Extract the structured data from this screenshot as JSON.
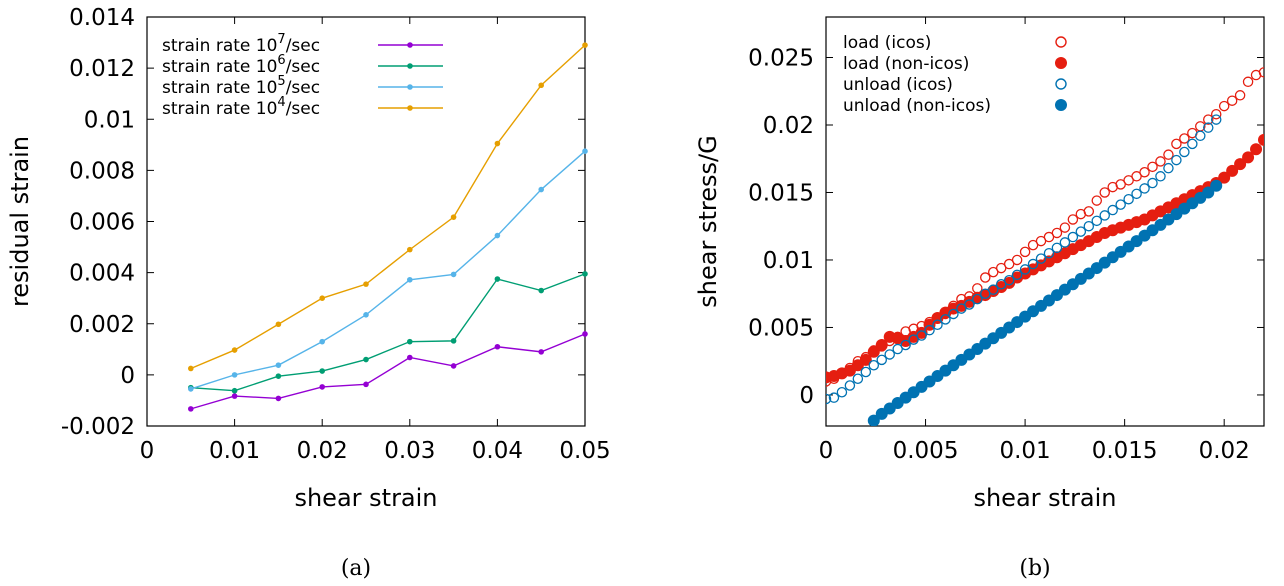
{
  "chart_data": [
    {
      "type": "line",
      "panel_caption": "(a)",
      "xlabel": "shear strain",
      "ylabel": "residual strain",
      "xlim": [
        0,
        0.05
      ],
      "ylim": [
        -0.002,
        0.014
      ],
      "xticks": [
        "0",
        "0.01",
        "0.02",
        "0.03",
        "0.04",
        "0.05"
      ],
      "yticks": [
        "-0.002",
        "0",
        "0.002",
        "0.004",
        "0.006",
        "0.008",
        "0.01",
        "0.012",
        "0.014"
      ],
      "legend_position": "top-left",
      "grid": false,
      "x": [
        0.005,
        0.01,
        0.015,
        0.02,
        0.025,
        0.03,
        0.035,
        0.04,
        0.045,
        0.05
      ],
      "series": [
        {
          "name_prefix": "strain rate 10",
          "name_exp": "7",
          "name_suffix": "/sec",
          "color": "#9400d3",
          "values": [
            -0.00133,
            -0.00083,
            -0.00092,
            -0.00047,
            -0.00037,
            0.00068,
            0.00035,
            0.0011,
            0.0009,
            0.0016
          ]
        },
        {
          "name_prefix": "strain rate 10",
          "name_exp": "6",
          "name_suffix": "/sec",
          "color": "#009e73",
          "values": [
            -0.0005,
            -0.00062,
            -5e-05,
            0.00015,
            0.0006,
            0.0013,
            0.00133,
            0.00375,
            0.0033,
            0.00395
          ]
        },
        {
          "name_prefix": "strain rate 10",
          "name_exp": "5",
          "name_suffix": "/sec",
          "color": "#56b4e9",
          "values": [
            -0.00055,
            0.0,
            0.00038,
            0.0013,
            0.00235,
            0.00372,
            0.00393,
            0.00545,
            0.00725,
            0.00875
          ]
        },
        {
          "name_prefix": "strain rate 10",
          "name_exp": "4",
          "name_suffix": "/sec",
          "color": "#e69f00",
          "values": [
            0.00025,
            0.00097,
            0.00198,
            0.003,
            0.00355,
            0.0049,
            0.00617,
            0.00905,
            0.01133,
            0.0129
          ]
        }
      ]
    },
    {
      "type": "scatter",
      "panel_caption": "(b)",
      "xlabel": "shear strain",
      "ylabel": "shear stress/G",
      "xlim": [
        0,
        0.022
      ],
      "ylim": [
        -0.0023,
        0.028
      ],
      "xticks": [
        "0",
        "0.005",
        "0.01",
        "0.015",
        "0.02"
      ],
      "yticks": [
        "0",
        "0.005",
        "0.01",
        "0.015",
        "0.02",
        "0.025"
      ],
      "legend_position": "top-left",
      "grid": false,
      "series": [
        {
          "name": "load (icos)",
          "color": "#e51e10",
          "marker": "open-circle",
          "x": [
            0.0,
            0.0004,
            0.0008,
            0.0012,
            0.0016,
            0.002,
            0.0024,
            0.0028,
            0.0032,
            0.0036,
            0.004,
            0.0044,
            0.0048,
            0.0052,
            0.0056,
            0.006,
            0.0064,
            0.0068,
            0.0072,
            0.0076,
            0.008,
            0.0084,
            0.0088,
            0.0092,
            0.0096,
            0.01,
            0.0104,
            0.0108,
            0.0112,
            0.0116,
            0.012,
            0.0124,
            0.0128,
            0.0132,
            0.0136,
            0.014,
            0.0144,
            0.0148,
            0.0152,
            0.0156,
            0.016,
            0.0164,
            0.0168,
            0.0172,
            0.0176,
            0.018,
            0.0184,
            0.0188,
            0.0192,
            0.0196,
            0.02,
            0.0204,
            0.0208,
            0.0212,
            0.0216,
            0.022
          ],
          "y": [
            0.001,
            0.0012,
            0.0016,
            0.002,
            0.0025,
            0.0028,
            0.0033,
            0.0036,
            0.004,
            0.0043,
            0.0047,
            0.0049,
            0.0051,
            0.0054,
            0.0057,
            0.006,
            0.0066,
            0.0071,
            0.0073,
            0.0079,
            0.0087,
            0.0091,
            0.0094,
            0.0097,
            0.01,
            0.0106,
            0.0111,
            0.0114,
            0.0117,
            0.012,
            0.0124,
            0.013,
            0.0134,
            0.0136,
            0.0144,
            0.015,
            0.0154,
            0.0156,
            0.0159,
            0.0162,
            0.0165,
            0.0169,
            0.0173,
            0.0178,
            0.0186,
            0.019,
            0.0194,
            0.0199,
            0.0204,
            0.0208,
            0.0214,
            0.0218,
            0.0222,
            0.0232,
            0.0237,
            0.0239
          ]
        },
        {
          "name": "load (non-icos)",
          "color": "#e51e10",
          "marker": "filled-circle",
          "x": [
            0.0,
            0.0004,
            0.0008,
            0.0012,
            0.0016,
            0.002,
            0.0024,
            0.0028,
            0.0032,
            0.0036,
            0.004,
            0.0044,
            0.0048,
            0.0052,
            0.0056,
            0.006,
            0.0064,
            0.0068,
            0.0072,
            0.0076,
            0.008,
            0.0084,
            0.0088,
            0.0092,
            0.0096,
            0.01,
            0.0104,
            0.0108,
            0.0112,
            0.0116,
            0.012,
            0.0124,
            0.0128,
            0.0132,
            0.0136,
            0.014,
            0.0144,
            0.0148,
            0.0152,
            0.0156,
            0.016,
            0.0164,
            0.0168,
            0.0172,
            0.0176,
            0.018,
            0.0184,
            0.0188,
            0.0192,
            0.0196,
            0.02,
            0.0204,
            0.0208,
            0.0212,
            0.0216,
            0.022
          ],
          "y": [
            0.0013,
            0.0014,
            0.0016,
            0.0018,
            0.0022,
            0.0026,
            0.0032,
            0.0037,
            0.0043,
            0.0042,
            0.004,
            0.0043,
            0.0046,
            0.0052,
            0.0057,
            0.0061,
            0.0064,
            0.0066,
            0.0069,
            0.0072,
            0.0074,
            0.0077,
            0.008,
            0.0083,
            0.0087,
            0.009,
            0.0093,
            0.0096,
            0.0099,
            0.0102,
            0.0105,
            0.0108,
            0.0111,
            0.0114,
            0.0117,
            0.012,
            0.0122,
            0.0124,
            0.0126,
            0.0128,
            0.013,
            0.0133,
            0.0136,
            0.0139,
            0.0142,
            0.0145,
            0.0148,
            0.0151,
            0.0154,
            0.0157,
            0.0161,
            0.0166,
            0.0171,
            0.0176,
            0.0182,
            0.0189
          ]
        },
        {
          "name": "unload (icos)",
          "color": "#0072b2",
          "marker": "open-circle",
          "x": [
            0.0,
            0.0004,
            0.0008,
            0.0012,
            0.0016,
            0.002,
            0.0024,
            0.0028,
            0.0032,
            0.0036,
            0.004,
            0.0044,
            0.0048,
            0.0052,
            0.0056,
            0.006,
            0.0064,
            0.0068,
            0.0072,
            0.0076,
            0.008,
            0.0084,
            0.0088,
            0.0092,
            0.0096,
            0.01,
            0.0104,
            0.0108,
            0.0112,
            0.0116,
            0.012,
            0.0124,
            0.0128,
            0.0132,
            0.0136,
            0.014,
            0.0144,
            0.0148,
            0.0152,
            0.0156,
            0.016,
            0.0164,
            0.0168,
            0.0172,
            0.0176,
            0.018,
            0.0184,
            0.0188,
            0.0192,
            0.0196
          ],
          "y": [
            -0.0003,
            -0.0002,
            0.0002,
            0.0007,
            0.0012,
            0.0017,
            0.0022,
            0.0026,
            0.003,
            0.0034,
            0.0037,
            0.0041,
            0.0044,
            0.0048,
            0.0052,
            0.0056,
            0.006,
            0.0064,
            0.0067,
            0.0071,
            0.0075,
            0.0078,
            0.0082,
            0.0085,
            0.0089,
            0.0093,
            0.0097,
            0.0101,
            0.0105,
            0.0109,
            0.0113,
            0.0117,
            0.0121,
            0.0125,
            0.0129,
            0.0133,
            0.0137,
            0.0141,
            0.0145,
            0.0149,
            0.0153,
            0.0157,
            0.0162,
            0.0168,
            0.0174,
            0.018,
            0.0186,
            0.0192,
            0.0198,
            0.0204
          ]
        },
        {
          "name": "unload (non-icos)",
          "color": "#0072b2",
          "marker": "filled-circle",
          "x": [
            0.0024,
            0.0028,
            0.0032,
            0.0036,
            0.004,
            0.0044,
            0.0048,
            0.0052,
            0.0056,
            0.006,
            0.0064,
            0.0068,
            0.0072,
            0.0076,
            0.008,
            0.0084,
            0.0088,
            0.0092,
            0.0096,
            0.01,
            0.0104,
            0.0108,
            0.0112,
            0.0116,
            0.012,
            0.0124,
            0.0128,
            0.0132,
            0.0136,
            0.014,
            0.0144,
            0.0148,
            0.0152,
            0.0156,
            0.016,
            0.0164,
            0.0168,
            0.0172,
            0.0176,
            0.018,
            0.0184,
            0.0188,
            0.0192,
            0.0196
          ],
          "y": [
            -0.0019,
            -0.0014,
            -0.001,
            -0.0006,
            -0.0002,
            0.0002,
            0.0006,
            0.001,
            0.0014,
            0.0018,
            0.0022,
            0.0026,
            0.003,
            0.0034,
            0.0038,
            0.0042,
            0.0046,
            0.005,
            0.0054,
            0.0058,
            0.0062,
            0.0066,
            0.007,
            0.0074,
            0.0078,
            0.0082,
            0.0086,
            0.009,
            0.0094,
            0.0098,
            0.0102,
            0.0106,
            0.011,
            0.0114,
            0.0118,
            0.0122,
            0.0126,
            0.013,
            0.0134,
            0.0138,
            0.0142,
            0.0146,
            0.015,
            0.0155
          ]
        }
      ]
    }
  ]
}
